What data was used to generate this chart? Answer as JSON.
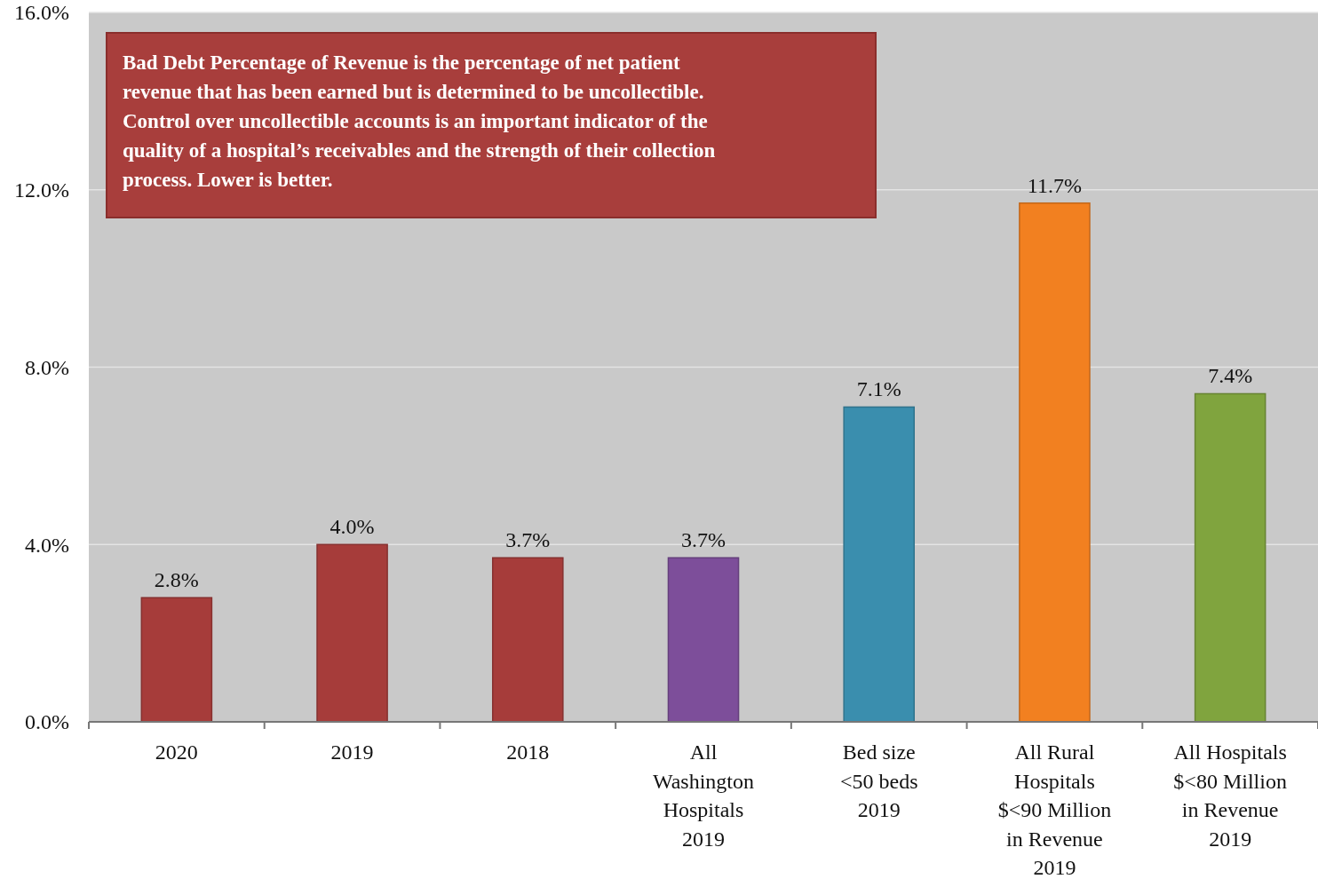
{
  "chart_data": {
    "type": "bar",
    "categories": [
      "2020",
      "2019",
      "2018",
      "All\nWashington\nHospitals\n2019",
      "Bed size\n<50 beds\n2019",
      "All Rural\nHospitals\n$<90 Million\nin Revenue\n2019",
      "All Hospitals\n$<80 Million\nin Revenue\n2019"
    ],
    "values": [
      2.8,
      4.0,
      3.7,
      3.7,
      7.1,
      11.7,
      7.4
    ],
    "colors": [
      "#a63c3a",
      "#a63c3a",
      "#a63c3a",
      "#7d4e9a",
      "#3a8eae",
      "#f28020",
      "#80a43e"
    ],
    "value_labels": [
      "2.8%",
      "4.0%",
      "3.7%",
      "3.7%",
      "7.1%",
      "11.7%",
      "7.4%"
    ],
    "ylim": [
      0,
      16
    ],
    "yticks": [
      {
        "value": 0,
        "label": "0.0%"
      },
      {
        "value": 4,
        "label": "4.0%"
      },
      {
        "value": 8,
        "label": "8.0%"
      },
      {
        "value": 12,
        "label": "12.0%"
      },
      {
        "value": 16,
        "label": "16.0%"
      }
    ],
    "grid": "y",
    "annotations": [
      "Bad Debt Percentage of Revenue is the percentage of net patient\nrevenue that has been earned but is determined to be uncollectible.\nControl over uncollectible accounts is an important indicator of the\nquality of a hospital’s receivables and the strength of their collection\nprocess. Lower is better."
    ]
  }
}
